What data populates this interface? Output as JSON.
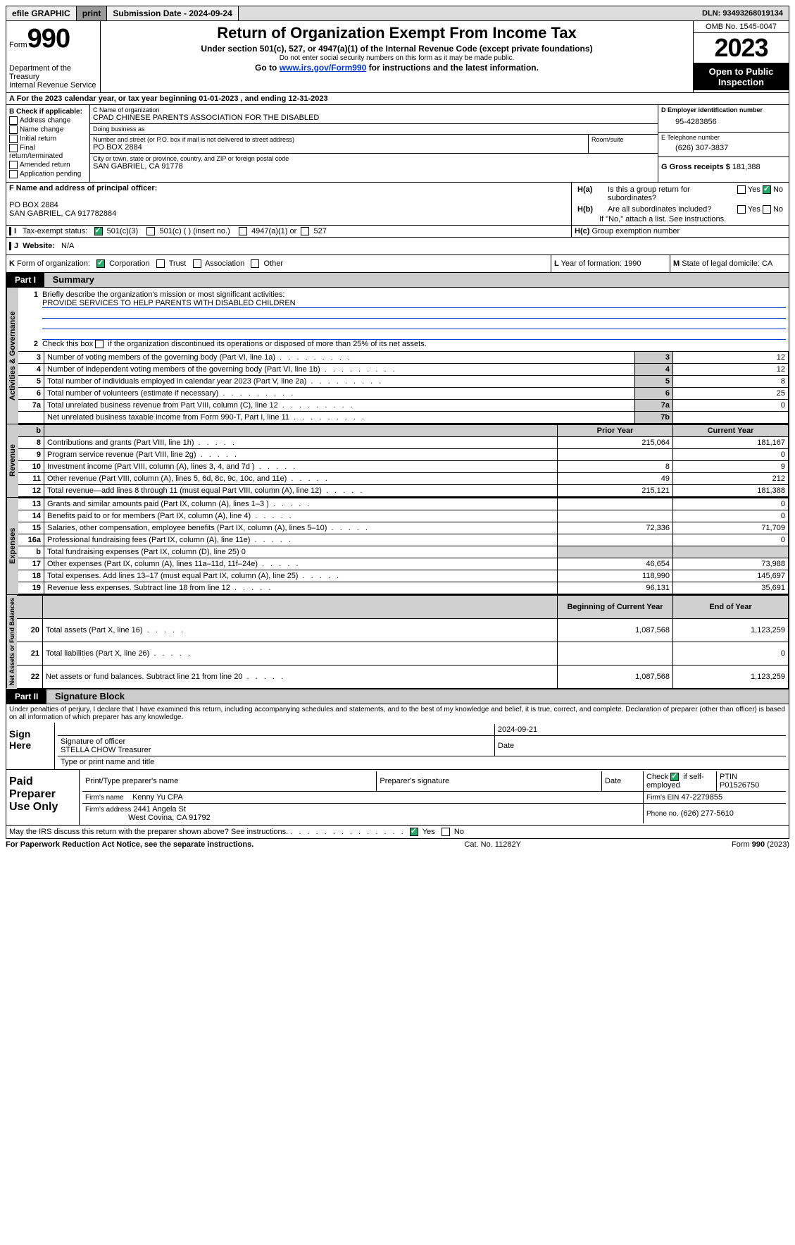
{
  "topbar": {
    "efile": "efile GRAPHIC",
    "print": "print",
    "submission": "Submission Date - 2024-09-24",
    "dln": "DLN: 93493268019134"
  },
  "header": {
    "formword": "Form",
    "formnum": "990",
    "dept": "Department of the Treasury",
    "irs": "Internal Revenue Service",
    "title": "Return of Organization Exempt From Income Tax",
    "subtitle": "Under section 501(c), 527, or 4947(a)(1) of the Internal Revenue Code (except private foundations)",
    "note1": "Do not enter social security numbers on this form as it may be made public.",
    "note2_pre": "Go to ",
    "note2_link": "www.irs.gov/Form990",
    "note2_post": " for instructions and the latest information.",
    "omb": "OMB No. 1545-0047",
    "year": "2023",
    "openlabel": "Open to Public Inspection"
  },
  "A": {
    "text": "For the 2023 calendar year, or tax year beginning 01-01-2023    , and ending 12-31-2023"
  },
  "B": {
    "label": "B Check if applicable:",
    "items": [
      "Address change",
      "Name change",
      "Initial return",
      "Final return/terminated",
      "Amended return",
      "Application pending"
    ]
  },
  "C": {
    "nameLabel": "C Name of organization",
    "name": "CPAD CHINESE PARENTS ASSOCIATION FOR THE DISABLED",
    "dbaLabel": "Doing business as",
    "dba": "",
    "streetLabel": "Number and street (or P.O. box if mail is not delivered to street address)",
    "street": "PO BOX 2884",
    "roomLabel": "Room/suite",
    "cityLabel": "City or town, state or province, country, and ZIP or foreign postal code",
    "city": "SAN GABRIEL, CA  91778"
  },
  "D": {
    "label": "D Employer identification number",
    "value": "95-4283856"
  },
  "E": {
    "label": "E Telephone number",
    "value": "(626) 307-3837"
  },
  "G": {
    "label": "G Gross receipts $",
    "value": "181,388"
  },
  "F": {
    "label": "F  Name and address of principal officer:",
    "name": "",
    "line1": "PO BOX 2884",
    "line2": "SAN GABRIEL, CA  917782884"
  },
  "H": {
    "a": "Is this a group return for subordinates?",
    "b": "Are all subordinates included?",
    "bnote": "If \"No,\" attach a list. See instructions.",
    "c": "Group exemption number",
    "yes": "Yes",
    "no": "No"
  },
  "I": {
    "label": "Tax-exempt status:",
    "opts": [
      "501(c)(3)",
      "501(c) (  ) (insert no.)",
      "4947(a)(1) or",
      "527"
    ]
  },
  "J": {
    "label": "Website:",
    "value": "N/A"
  },
  "K": {
    "label": "Form of organization:",
    "opts": [
      "Corporation",
      "Trust",
      "Association",
      "Other"
    ]
  },
  "L": {
    "label": "Year of formation:",
    "value": "1990"
  },
  "M": {
    "label": "State of legal domicile:",
    "value": "CA"
  },
  "part1": {
    "label": "Part I",
    "title": "Summary"
  },
  "summary": {
    "l1": "Briefly describe the organization's mission or most significant activities:",
    "mission": "PROVIDE SERVICES TO HELP PARENTS WITH DISABLED CHILDREN",
    "l2": "Check this box        if the organization discontinued its operations or disposed of more than 25% of its net assets.",
    "rows_gov": [
      {
        "n": "3",
        "t": "Number of voting members of the governing body (Part VI, line 1a)",
        "rn": "3",
        "v": "12"
      },
      {
        "n": "4",
        "t": "Number of independent voting members of the governing body (Part VI, line 1b)",
        "rn": "4",
        "v": "12"
      },
      {
        "n": "5",
        "t": "Total number of individuals employed in calendar year 2023 (Part V, line 2a)",
        "rn": "5",
        "v": "8"
      },
      {
        "n": "6",
        "t": "Total number of volunteers (estimate if necessary)",
        "rn": "6",
        "v": "25"
      },
      {
        "n": "7a",
        "t": "Total unrelated business revenue from Part VIII, column (C), line 12",
        "rn": "7a",
        "v": "0"
      },
      {
        "n": "",
        "t": "Net unrelated business taxable income from Form 990-T, Part I, line 11",
        "rn": "7b",
        "v": ""
      }
    ],
    "colhead_prior": "Prior Year",
    "colhead_curr": "Current Year",
    "rows_rev": [
      {
        "n": "8",
        "t": "Contributions and grants (Part VIII, line 1h)",
        "p": "215,064",
        "c": "181,167"
      },
      {
        "n": "9",
        "t": "Program service revenue (Part VIII, line 2g)",
        "p": "",
        "c": "0"
      },
      {
        "n": "10",
        "t": "Investment income (Part VIII, column (A), lines 3, 4, and 7d )",
        "p": "8",
        "c": "9"
      },
      {
        "n": "11",
        "t": "Other revenue (Part VIII, column (A), lines 5, 6d, 8c, 9c, 10c, and 11e)",
        "p": "49",
        "c": "212"
      },
      {
        "n": "12",
        "t": "Total revenue—add lines 8 through 11 (must equal Part VIII, column (A), line 12)",
        "p": "215,121",
        "c": "181,388"
      }
    ],
    "rows_exp": [
      {
        "n": "13",
        "t": "Grants and similar amounts paid (Part IX, column (A), lines 1–3 )",
        "p": "",
        "c": "0"
      },
      {
        "n": "14",
        "t": "Benefits paid to or for members (Part IX, column (A), line 4)",
        "p": "",
        "c": "0"
      },
      {
        "n": "15",
        "t": "Salaries, other compensation, employee benefits (Part IX, column (A), lines 5–10)",
        "p": "72,336",
        "c": "71,709"
      },
      {
        "n": "16a",
        "t": "Professional fundraising fees (Part IX, column (A), line 11e)",
        "p": "",
        "c": "0"
      },
      {
        "n": "b",
        "t": "Total fundraising expenses (Part IX, column (D), line 25) 0",
        "p": "SHADE",
        "c": "SHADE"
      },
      {
        "n": "17",
        "t": "Other expenses (Part IX, column (A), lines 11a–11d, 11f–24e)",
        "p": "46,654",
        "c": "73,988"
      },
      {
        "n": "18",
        "t": "Total expenses. Add lines 13–17 (must equal Part IX, column (A), line 25)",
        "p": "118,990",
        "c": "145,697"
      },
      {
        "n": "19",
        "t": "Revenue less expenses. Subtract line 18 from line 12",
        "p": "96,131",
        "c": "35,691"
      }
    ],
    "colhead_beg": "Beginning of Current Year",
    "colhead_end": "End of Year",
    "rows_na": [
      {
        "n": "20",
        "t": "Total assets (Part X, line 16)",
        "p": "1,087,568",
        "c": "1,123,259"
      },
      {
        "n": "21",
        "t": "Total liabilities (Part X, line 26)",
        "p": "",
        "c": "0"
      },
      {
        "n": "22",
        "t": "Net assets or fund balances. Subtract line 21 from line 20",
        "p": "1,087,568",
        "c": "1,123,259"
      }
    ],
    "sidelabels": {
      "gov": "Activities & Governance",
      "rev": "Revenue",
      "exp": "Expenses",
      "na": "Net Assets or Fund Balances"
    }
  },
  "part2": {
    "label": "Part II",
    "title": "Signature Block",
    "declaration": "Under penalties of perjury, I declare that I have examined this return, including accompanying schedules and statements, and to the best of my knowledge and belief, it is true, correct, and complete. Declaration of preparer (other than officer) is based on all information of which preparer has any knowledge."
  },
  "sign": {
    "here": "Sign Here",
    "sigoff": "Signature of officer",
    "date": "Date",
    "datetop": "2024-09-21",
    "officer": "STELLA CHOW Treasurer",
    "typeprint": "Type or print name and title"
  },
  "paid": {
    "label": "Paid Preparer Use Only",
    "h1": "Print/Type preparer's name",
    "h2": "Preparer's signature",
    "h3": "Date",
    "h4pre": "Check",
    "h4post": "if self-employed",
    "h5": "PTIN",
    "ptin": "P01526750",
    "firmname_l": "Firm's name",
    "firmname": "Kenny Yu CPA",
    "firmein_l": "Firm's EIN",
    "firmein": "47-2279855",
    "firmaddr_l": "Firm's address",
    "firmaddr1": "2441 Angela St",
    "firmaddr2": "West Covina, CA  91792",
    "phone_l": "Phone no.",
    "phone": "(626) 277-5610"
  },
  "discuss": {
    "q": "May the IRS discuss this return with the preparer shown above? See instructions.",
    "yes": "Yes",
    "no": "No"
  },
  "footer": {
    "l": "For Paperwork Reduction Act Notice, see the separate instructions.",
    "c": "Cat. No. 11282Y",
    "r": "Form 990 (2023)"
  }
}
